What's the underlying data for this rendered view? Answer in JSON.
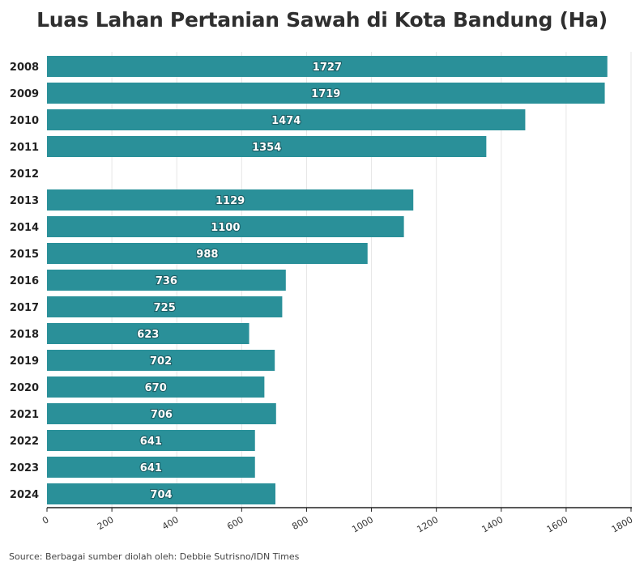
{
  "chart_data": {
    "type": "bar",
    "orientation": "horizontal",
    "title": "Luas Lahan Pertanian Sawah di Kota Bandung (Ha)",
    "categories": [
      "2008",
      "2009",
      "2010",
      "2011",
      "2012",
      "2013",
      "2014",
      "2015",
      "2016",
      "2017",
      "2018",
      "2019",
      "2020",
      "2021",
      "2022",
      "2023",
      "2024"
    ],
    "values": [
      1727,
      1719,
      1474,
      1354,
      null,
      1129,
      1100,
      988,
      736,
      725,
      623,
      702,
      670,
      706,
      641,
      641,
      704
    ],
    "xlim": [
      0,
      1800
    ],
    "xticks": [
      0,
      200,
      400,
      600,
      800,
      1000,
      1200,
      1400,
      1600,
      1800
    ],
    "grid": true,
    "bar_color": "#2a9099",
    "xlabel": "",
    "ylabel": ""
  },
  "source": "Source: Berbagai sumber diolah oleh: Debbie Sutrisno/IDN Times"
}
